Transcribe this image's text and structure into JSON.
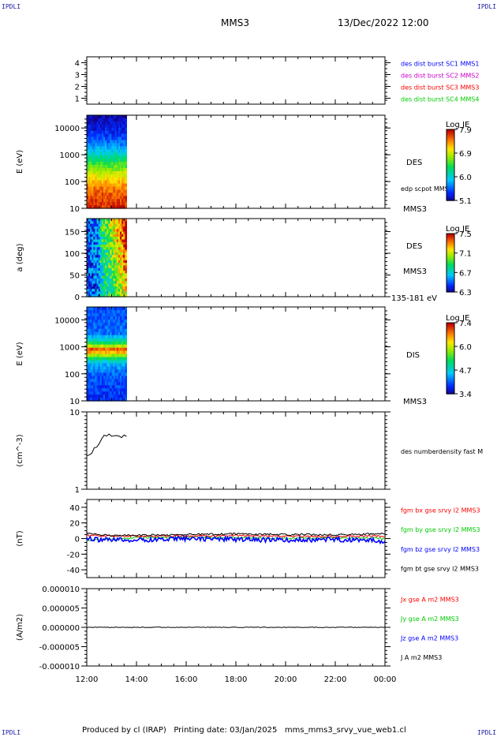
{
  "header": {
    "corner_label": "IPDLI",
    "spacecraft": "MMS3",
    "date": "13/Dec/2022 12:00"
  },
  "footer": {
    "text": "Produced by cl (IRAP)   Printing date: 03/Jan/2025   mms_mms3_srvy_vue_web1.cl"
  },
  "colors": {
    "axis": "#000000",
    "mms1": "#0000ff",
    "mms2": "#cc00cc",
    "mms3": "#ff0000",
    "mms4": "#00cc00",
    "bx": "#ff0000",
    "by": "#00cc00",
    "bz": "#0000ff",
    "bt": "#000000"
  },
  "chart_data": [
    {
      "type": "line",
      "id": "panel1",
      "ylabel": "",
      "ylim": [
        0.5,
        4.5
      ],
      "ytick_labels": [
        "4",
        "3",
        "2",
        "1"
      ],
      "ytick_values": [
        4,
        3,
        2,
        1
      ],
      "legend": [
        {
          "text": "des dist burst SC1 MMS1",
          "color": "#0000ff"
        },
        {
          "text": "des dist burst SC2 MMS2",
          "color": "#cc00cc"
        },
        {
          "text": "des dist burst SC3 MMS3",
          "color": "#ff0000"
        },
        {
          "text": "des dist burst SC4 MMS4",
          "color": "#00cc00"
        }
      ],
      "series": []
    },
    {
      "type": "heatmap",
      "id": "panel2",
      "ylabel": "E (eV)",
      "yscale": "log",
      "ylim": [
        10,
        30000
      ],
      "ytick_labels": [
        "10000",
        "1000",
        "100",
        "10"
      ],
      "ytick_values": [
        10000,
        1000,
        100,
        10
      ],
      "data_extent_hours": [
        12.0,
        13.6
      ],
      "instrument": "DES",
      "note": "edp scpot MMS3",
      "spacecraft": "MMS3",
      "colorbar": {
        "title": "Log JE",
        "tick_labels": [
          "7.9",
          "6.9",
          "6.0",
          "5.1"
        ]
      },
      "profile_log_y": [
        1.0,
        1.4,
        1.8,
        2.2,
        2.6,
        3.0,
        3.4,
        3.8,
        4.2,
        4.5
      ],
      "profile_level": [
        0.95,
        0.92,
        0.85,
        0.72,
        0.55,
        0.38,
        0.22,
        0.12,
        0.06,
        0.03
      ]
    },
    {
      "type": "heatmap",
      "id": "panel3",
      "ylabel": "a (deg)",
      "ylim": [
        0,
        180
      ],
      "ytick_labels": [
        "150",
        "100",
        "50",
        "0"
      ],
      "ytick_values": [
        150,
        100,
        50,
        0
      ],
      "data_extent_hours": [
        12.0,
        13.6
      ],
      "instrument": "DES",
      "spacecraft": "MMS3",
      "energy_range": "135-181 eV",
      "colorbar": {
        "title": "Log JE",
        "tick_labels": [
          "7.5",
          "7.1",
          "6.7",
          "6.3"
        ]
      }
    },
    {
      "type": "heatmap",
      "id": "panel4",
      "ylabel": "E (eV)",
      "yscale": "log",
      "ylim": [
        10,
        30000
      ],
      "ytick_labels": [
        "10000",
        "1000",
        "100",
        "10"
      ],
      "ytick_values": [
        10000,
        1000,
        100,
        10
      ],
      "data_extent_hours": [
        12.0,
        13.6
      ],
      "instrument": "DIS",
      "spacecraft": "MMS3",
      "colorbar": {
        "title": "Log JE",
        "tick_labels": [
          "7.4",
          "6.0",
          "4.7",
          "3.4"
        ]
      },
      "profile_log_y": [
        1.0,
        2.0,
        2.4,
        2.6,
        2.75,
        2.9,
        3.0,
        3.2,
        3.5,
        4.5
      ],
      "profile_level": [
        0.12,
        0.18,
        0.3,
        0.5,
        0.75,
        0.92,
        0.7,
        0.4,
        0.2,
        0.15
      ]
    },
    {
      "type": "line",
      "id": "panel5",
      "ylabel": "(cm^-3)",
      "yscale": "log",
      "ylim": [
        1,
        10
      ],
      "ytick_labels": [
        "10",
        "1"
      ],
      "ytick_values": [
        10,
        1
      ],
      "legend": [
        {
          "text": "des numberdensity fast M",
          "color": "#000000"
        }
      ],
      "series": [
        {
          "name": "des numberdensity fast M",
          "color": "#000000",
          "x": [
            12.0,
            12.1,
            12.2,
            12.3,
            12.4,
            12.5,
            12.6,
            12.7,
            12.8,
            12.9,
            13.0,
            13.1,
            13.2,
            13.3,
            13.4,
            13.5,
            13.6
          ],
          "y": [
            2.7,
            2.9,
            3.0,
            3.4,
            3.7,
            4.1,
            4.3,
            4.8,
            5.0,
            5.2,
            5.0,
            4.9,
            4.7,
            4.8,
            4.7,
            4.8,
            4.7
          ]
        }
      ]
    },
    {
      "type": "line",
      "id": "panel6",
      "ylabel": "(nT)",
      "ylim": [
        -50,
        50
      ],
      "ytick_labels": [
        "40",
        "20",
        "0",
        "-20",
        "-40"
      ],
      "ytick_values": [
        40,
        20,
        0,
        -20,
        -40
      ],
      "legend": [
        {
          "text": "fgm bx gse srvy l2 MMS3",
          "color": "#ff0000"
        },
        {
          "text": "fgm by gse srvy l2 MMS3",
          "color": "#00cc00"
        },
        {
          "text": "fgm bz gse srvy l2 MMS3",
          "color": "#0000ff"
        },
        {
          "text": "fgm bt gse srvy l2 MMS3",
          "color": "#000000"
        }
      ],
      "series": [
        {
          "name": "fgm by gse srvy l2 MMS3",
          "color": "#00cc00",
          "x": [
            12,
            14,
            16,
            18,
            20,
            22,
            24
          ],
          "y": [
            -2,
            1,
            2,
            1,
            0,
            1,
            0
          ]
        },
        {
          "name": "fgm bx gse srvy l2 MMS3",
          "color": "#ff0000",
          "x": [
            12,
            14,
            16,
            18,
            20,
            22,
            24
          ],
          "y": [
            4,
            3,
            3,
            4,
            3,
            3,
            3
          ]
        },
        {
          "name": "fgm bt gse srvy l2 MMS3",
          "color": "#000000",
          "x": [
            12,
            12.5,
            13,
            14,
            16,
            18,
            20,
            22,
            24
          ],
          "y": [
            7,
            5,
            4,
            4,
            5,
            6,
            5,
            5,
            6
          ]
        },
        {
          "name": "fgm bz gse srvy l2 MMS3",
          "color": "#0000ff",
          "x": [
            12,
            12.5,
            13,
            14,
            16,
            18,
            20,
            22,
            24
          ],
          "y": [
            0,
            -2,
            -1,
            -2,
            0,
            -1,
            -2,
            -1,
            -3
          ]
        }
      ]
    },
    {
      "type": "line",
      "id": "panel7",
      "ylabel": "(A/m2)",
      "ylim": [
        -1e-05,
        1e-05
      ],
      "ytick_labels": [
        "0.000010",
        "0.000005",
        "0.000000",
        "-0.000005",
        "-0.000010"
      ],
      "ytick_values": [
        1e-05,
        5e-06,
        0,
        -5e-06,
        -1e-05
      ],
      "legend": [
        {
          "text": "Jx gse A m2 MMS3",
          "color": "#ff0000"
        },
        {
          "text": "Jy gse A m2 MMS3",
          "color": "#00cc00"
        },
        {
          "text": "Jz gse A m2 MMS3",
          "color": "#0000ff"
        },
        {
          "text": "J A m2 MMS3",
          "color": "#000000"
        }
      ],
      "series": [
        {
          "name": "J A m2 MMS3",
          "color": "#000000",
          "x": [
            12,
            24
          ],
          "y": [
            0,
            0
          ]
        }
      ]
    }
  ],
  "xaxis": {
    "range_hours": [
      12,
      24
    ],
    "tick_values": [
      12,
      14,
      16,
      18,
      20,
      22,
      24
    ],
    "tick_labels": [
      "12:00",
      "14:00",
      "16:00",
      "18:00",
      "20:00",
      "22:00",
      "00:00"
    ]
  }
}
